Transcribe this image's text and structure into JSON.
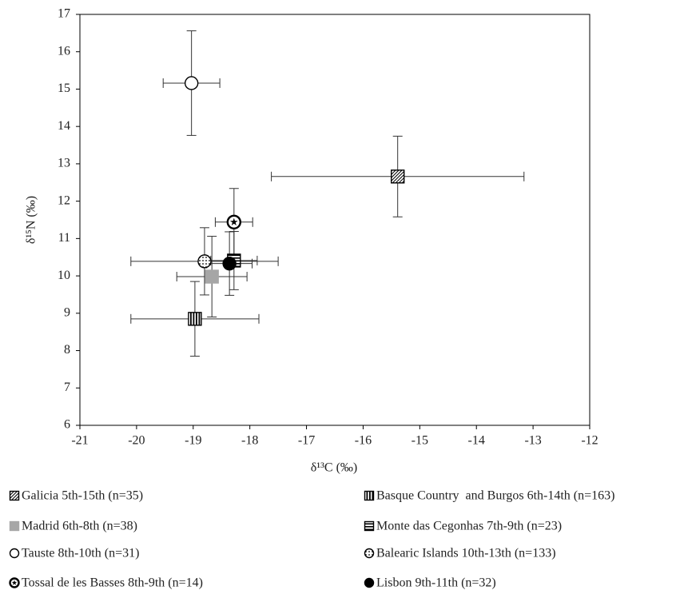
{
  "chart_data": {
    "type": "scatter",
    "x_label": "δ¹³C (‰)",
    "y_label": "δ¹⁵N (‰)",
    "xlim": [
      -21,
      -12
    ],
    "xticks": [
      -21,
      -20,
      -19,
      -18,
      -17,
      -16,
      -15,
      -14,
      -13,
      -12
    ],
    "ylim": [
      6,
      17
    ],
    "yticks": [
      6,
      7,
      8,
      9,
      10,
      11,
      12,
      13,
      14,
      15,
      16,
      17
    ],
    "series": [
      {
        "name": "Galicia 5th-15th (n=35)",
        "color": "#000000",
        "marker": "square-diagonal",
        "x": [
          -15.39
        ],
        "y": [
          12.66
        ],
        "xerr": [
          2.23
        ],
        "yerr": [
          1.08
        ]
      },
      {
        "name": "Basque Country  and Burgos 6th-14th (n=163)",
        "color": "#000000",
        "marker": "square-vertical",
        "x": [
          -18.97
        ],
        "y": [
          8.85
        ],
        "xerr": [
          1.13
        ],
        "yerr": [
          1.0
        ]
      },
      {
        "name": "Madrid 6th-8th (n=38)",
        "color": "#a6a6a6",
        "marker": "square-filled",
        "x": [
          -18.67
        ],
        "y": [
          9.98
        ],
        "xerr": [
          0.62
        ],
        "yerr": [
          1.08
        ]
      },
      {
        "name": "Monte das Cegonhas 7th-9th (n=23)",
        "color": "#000000",
        "marker": "square-horizontal",
        "x": [
          -18.28
        ],
        "y": [
          10.41
        ],
        "xerr": [
          0.41
        ],
        "yerr": [
          0.78
        ]
      },
      {
        "name": "Tauste 8th-10th (n=31)",
        "color": "#000000",
        "marker": "circle-open",
        "x": [
          -19.03
        ],
        "y": [
          15.16
        ],
        "xerr": [
          0.5
        ],
        "yerr": [
          1.4
        ]
      },
      {
        "name": "Balearic Islands 10th-13th (n=133)",
        "color": "#000000",
        "marker": "circle-dotted",
        "x": [
          -18.8
        ],
        "y": [
          10.39
        ],
        "xerr": [
          1.3
        ],
        "yerr": [
          0.9
        ]
      },
      {
        "name": "Tossal de les Basses 8th-9th (n=14)",
        "color": "#000000",
        "marker": "circle-star",
        "x": [
          -18.28
        ],
        "y": [
          11.44
        ],
        "xerr": [
          0.33
        ],
        "yerr": [
          0.9
        ]
      },
      {
        "name": "Lisbon 9th-11th (n=32)",
        "color": "#000000",
        "marker": "circle-filled",
        "x": [
          -18.36
        ],
        "y": [
          10.33
        ],
        "xerr": [
          0.4
        ],
        "yerr": [
          0.85
        ]
      }
    ]
  }
}
